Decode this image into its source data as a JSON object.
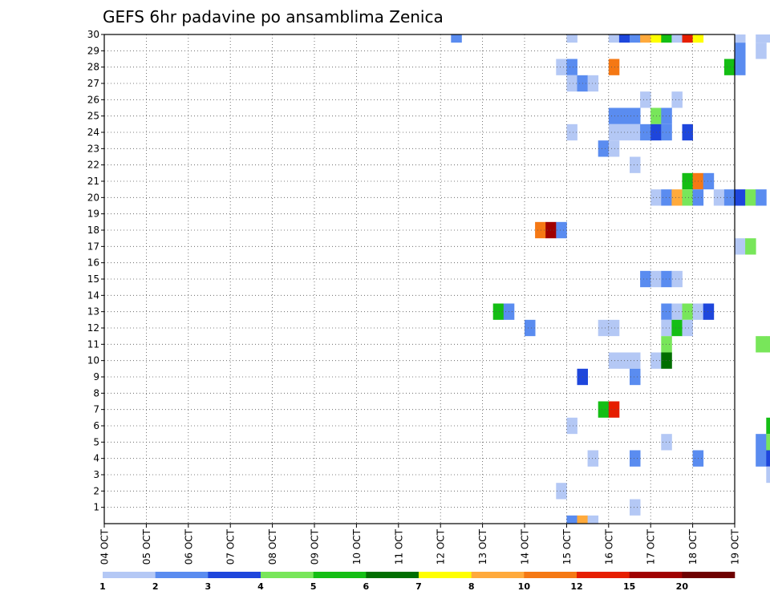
{
  "chart_data": {
    "type": "heatmap",
    "title": "GEFS 6hr padavine po ansamblima Zenica",
    "x_labels": [
      "04 OCT",
      "05 OCT",
      "06 OCT",
      "07 OCT",
      "08 OCT",
      "09 OCT",
      "10 OCT",
      "11 OCT",
      "12 OCT",
      "13 OCT",
      "14 OCT",
      "15 OCT",
      "16 OCT",
      "17 OCT",
      "18 OCT",
      "19 OCT"
    ],
    "y_labels": [
      "1",
      "2",
      "3",
      "4",
      "5",
      "6",
      "7",
      "8",
      "9",
      "10",
      "11",
      "12",
      "13",
      "14",
      "15",
      "16",
      "17",
      "18",
      "19",
      "20",
      "21",
      "22",
      "23",
      "24",
      "25",
      "26",
      "27",
      "28",
      "29",
      "30"
    ],
    "y_range": [
      0,
      30
    ],
    "x_range_steps_per_day": 4,
    "grid": "dotted",
    "legend": "bottom",
    "colorbar": {
      "labels": [
        "1",
        "2",
        "3",
        "4",
        "5",
        "6",
        "7",
        "8",
        "10",
        "12",
        "15",
        "20"
      ],
      "colors": [
        "#b4c8f5",
        "#5a8cf0",
        "#1e46dc",
        "#78e65a",
        "#14be14",
        "#006e00",
        "#ffff00",
        "#ffaa3c",
        "#f57814",
        "#e61e00",
        "#a00000",
        "#6e0000"
      ]
    },
    "cells": [
      {
        "step": 33,
        "member": 30,
        "level": 2
      },
      {
        "step": 44,
        "member": 30,
        "level": 1
      },
      {
        "step": 48,
        "member": 30,
        "level": 1
      },
      {
        "step": 49,
        "member": 30,
        "level": 3
      },
      {
        "step": 50,
        "member": 30,
        "level": 2
      },
      {
        "step": 51,
        "member": 30,
        "level": 8
      },
      {
        "step": 52,
        "member": 30,
        "level": 7
      },
      {
        "step": 53,
        "member": 30,
        "level": 5
      },
      {
        "step": 54,
        "member": 30,
        "level": 1
      },
      {
        "step": 55,
        "member": 30,
        "level": 10
      },
      {
        "step": 56,
        "member": 30,
        "level": 7
      },
      {
        "step": 60,
        "member": 30,
        "level": 1
      },
      {
        "step": 62,
        "member": 30,
        "level": 1
      },
      {
        "step": 63,
        "member": 30,
        "level": 1
      },
      {
        "step": 75,
        "member": 30,
        "level": 3
      },
      {
        "step": 76,
        "member": 30,
        "level": 1
      },
      {
        "step": 60,
        "member": 29,
        "level": 2
      },
      {
        "step": 62,
        "member": 29,
        "level": 1
      },
      {
        "step": 43,
        "member": 28,
        "level": 1
      },
      {
        "step": 44,
        "member": 28,
        "level": 2
      },
      {
        "step": 48,
        "member": 28,
        "level": 9
      },
      {
        "step": 59,
        "member": 28,
        "level": 5
      },
      {
        "step": 60,
        "member": 28,
        "level": 2
      },
      {
        "step": 65,
        "member": 28,
        "level": 2
      },
      {
        "step": 66,
        "member": 28,
        "level": 2
      },
      {
        "step": 44,
        "member": 27,
        "level": 1
      },
      {
        "step": 45,
        "member": 27,
        "level": 2
      },
      {
        "step": 46,
        "member": 27,
        "level": 1
      },
      {
        "step": 76,
        "member": 27,
        "level": 3
      },
      {
        "step": 51,
        "member": 26,
        "level": 1
      },
      {
        "step": 54,
        "member": 26,
        "level": 1
      },
      {
        "step": 71,
        "member": 26,
        "level": 1
      },
      {
        "step": 77,
        "member": 26,
        "level": 2
      },
      {
        "step": 78,
        "member": 26,
        "level": 10
      },
      {
        "step": 79,
        "member": 26,
        "level": 5
      },
      {
        "step": 80,
        "member": 26,
        "level": 5
      },
      {
        "step": 48,
        "member": 25,
        "level": 2
      },
      {
        "step": 49,
        "member": 25,
        "level": 2
      },
      {
        "step": 50,
        "member": 25,
        "level": 2
      },
      {
        "step": 52,
        "member": 25,
        "level": 4
      },
      {
        "step": 53,
        "member": 25,
        "level": 2
      },
      {
        "step": 76,
        "member": 25,
        "level": 1
      },
      {
        "step": 44,
        "member": 24,
        "level": 1
      },
      {
        "step": 48,
        "member": 24,
        "level": 1
      },
      {
        "step": 49,
        "member": 24,
        "level": 1
      },
      {
        "step": 50,
        "member": 24,
        "level": 1
      },
      {
        "step": 51,
        "member": 24,
        "level": 2
      },
      {
        "step": 52,
        "member": 24,
        "level": 3
      },
      {
        "step": 53,
        "member": 24,
        "level": 2
      },
      {
        "step": 55,
        "member": 24,
        "level": 3
      },
      {
        "step": 47,
        "member": 23,
        "level": 2
      },
      {
        "step": 48,
        "member": 23,
        "level": 1
      },
      {
        "step": 50,
        "member": 22,
        "level": 1
      },
      {
        "step": 66,
        "member": 22,
        "level": 6
      },
      {
        "step": 67,
        "member": 22,
        "level": 11
      },
      {
        "step": 68,
        "member": 22,
        "level": 2
      },
      {
        "step": 69,
        "member": 22,
        "level": 5
      },
      {
        "step": 70,
        "member": 22,
        "level": 8
      },
      {
        "step": 75,
        "member": 22,
        "level": 8
      },
      {
        "step": 76,
        "member": 22,
        "level": 7
      },
      {
        "step": 77,
        "member": 22,
        "level": 8
      },
      {
        "step": 78,
        "member": 22,
        "level": 1
      },
      {
        "step": 79,
        "member": 22,
        "level": 1
      },
      {
        "step": 55,
        "member": 21,
        "level": 5
      },
      {
        "step": 56,
        "member": 21,
        "level": 9
      },
      {
        "step": 57,
        "member": 21,
        "level": 2
      },
      {
        "step": 52,
        "member": 20,
        "level": 1
      },
      {
        "step": 53,
        "member": 20,
        "level": 2
      },
      {
        "step": 54,
        "member": 20,
        "level": 8
      },
      {
        "step": 55,
        "member": 20,
        "level": 4
      },
      {
        "step": 56,
        "member": 20,
        "level": 2
      },
      {
        "step": 58,
        "member": 20,
        "level": 1
      },
      {
        "step": 59,
        "member": 20,
        "level": 2
      },
      {
        "step": 60,
        "member": 20,
        "level": 3
      },
      {
        "step": 61,
        "member": 20,
        "level": 4
      },
      {
        "step": 62,
        "member": 20,
        "level": 2
      },
      {
        "step": 73,
        "member": 20,
        "level": 8
      },
      {
        "step": 74,
        "member": 20,
        "level": 5
      },
      {
        "step": 75,
        "member": 20,
        "level": 3
      },
      {
        "step": 78,
        "member": 20,
        "level": 9
      },
      {
        "step": 79,
        "member": 20,
        "level": 6
      },
      {
        "step": 79,
        "member": 19,
        "level": 1
      },
      {
        "step": 80,
        "member": 19,
        "level": 1
      },
      {
        "step": 41,
        "member": 18,
        "level": 9
      },
      {
        "step": 42,
        "member": 18,
        "level": 11
      },
      {
        "step": 43,
        "member": 18,
        "level": 2
      },
      {
        "step": 60,
        "member": 17,
        "level": 1
      },
      {
        "step": 61,
        "member": 17,
        "level": 4
      },
      {
        "step": 80,
        "member": 17,
        "level": 1
      },
      {
        "step": 78,
        "member": 16,
        "level": 2
      },
      {
        "step": 79,
        "member": 16,
        "level": 4
      },
      {
        "step": 80,
        "member": 16,
        "level": 9
      },
      {
        "step": 81,
        "member": 16,
        "level": 2
      },
      {
        "step": 51,
        "member": 15,
        "level": 2
      },
      {
        "step": 52,
        "member": 15,
        "level": 1
      },
      {
        "step": 53,
        "member": 15,
        "level": 2
      },
      {
        "step": 54,
        "member": 15,
        "level": 1
      },
      {
        "step": 64,
        "member": 15,
        "level": 5
      },
      {
        "step": 65,
        "member": 15,
        "level": 11
      },
      {
        "step": 66,
        "member": 15,
        "level": 1
      },
      {
        "step": 73,
        "member": 15,
        "level": 4
      },
      {
        "step": 74,
        "member": 15,
        "level": 9
      },
      {
        "step": 79,
        "member": 14,
        "level": 1
      },
      {
        "step": 37,
        "member": 13,
        "level": 5
      },
      {
        "step": 38,
        "member": 13,
        "level": 2
      },
      {
        "step": 53,
        "member": 13,
        "level": 2
      },
      {
        "step": 54,
        "member": 13,
        "level": 1
      },
      {
        "step": 55,
        "member": 13,
        "level": 4
      },
      {
        "step": 56,
        "member": 13,
        "level": 1
      },
      {
        "step": 57,
        "member": 13,
        "level": 3
      },
      {
        "step": 79,
        "member": 13,
        "level": 1
      },
      {
        "step": 80,
        "member": 13,
        "level": 8
      },
      {
        "step": 81,
        "member": 13,
        "level": 1
      },
      {
        "step": 40,
        "member": 12,
        "level": 2
      },
      {
        "step": 47,
        "member": 12,
        "level": 1
      },
      {
        "step": 48,
        "member": 12,
        "level": 1
      },
      {
        "step": 53,
        "member": 12,
        "level": 1
      },
      {
        "step": 54,
        "member": 12,
        "level": 5
      },
      {
        "step": 55,
        "member": 12,
        "level": 1
      },
      {
        "step": 78,
        "member": 12,
        "level": 10
      },
      {
        "step": 79,
        "member": 12,
        "level": 12
      },
      {
        "step": 80,
        "member": 12,
        "level": 1
      },
      {
        "step": 53,
        "member": 11,
        "level": 4
      },
      {
        "step": 62,
        "member": 11,
        "level": 4
      },
      {
        "step": 63,
        "member": 11,
        "level": 4
      },
      {
        "step": 64,
        "member": 11,
        "level": 12
      },
      {
        "step": 65,
        "member": 11,
        "level": 11
      },
      {
        "step": 66,
        "member": 11,
        "level": 6
      },
      {
        "step": 78,
        "member": 11,
        "level": 9
      },
      {
        "step": 79,
        "member": 11,
        "level": 2
      },
      {
        "step": 80,
        "member": 11,
        "level": 4
      },
      {
        "step": 48,
        "member": 10,
        "level": 1
      },
      {
        "step": 49,
        "member": 10,
        "level": 1
      },
      {
        "step": 50,
        "member": 10,
        "level": 1
      },
      {
        "step": 52,
        "member": 10,
        "level": 1
      },
      {
        "step": 53,
        "member": 10,
        "level": 6
      },
      {
        "step": 74,
        "member": 10,
        "level": 1
      },
      {
        "step": 75,
        "member": 10,
        "level": 4
      },
      {
        "step": 76,
        "member": 10,
        "level": 9
      },
      {
        "step": 45,
        "member": 9,
        "level": 3
      },
      {
        "step": 50,
        "member": 9,
        "level": 2
      },
      {
        "step": 65,
        "member": 8,
        "level": 2
      },
      {
        "step": 66,
        "member": 8,
        "level": 4
      },
      {
        "step": 67,
        "member": 8,
        "level": 7
      },
      {
        "step": 68,
        "member": 8,
        "level": 1
      },
      {
        "step": 47,
        "member": 7,
        "level": 5
      },
      {
        "step": 48,
        "member": 7,
        "level": 10
      },
      {
        "step": 78,
        "member": 7,
        "level": 7
      },
      {
        "step": 79,
        "member": 7,
        "level": 12
      },
      {
        "step": 80,
        "member": 7,
        "level": 11
      },
      {
        "step": 81,
        "member": 7,
        "level": 1
      },
      {
        "step": 44,
        "member": 6,
        "level": 1
      },
      {
        "step": 63,
        "member": 6,
        "level": 5
      },
      {
        "step": 64,
        "member": 6,
        "level": 5
      },
      {
        "step": 74,
        "member": 6,
        "level": 4
      },
      {
        "step": 53,
        "member": 5,
        "level": 1
      },
      {
        "step": 62,
        "member": 5,
        "level": 2
      },
      {
        "step": 63,
        "member": 5,
        "level": 4
      },
      {
        "step": 66,
        "member": 5,
        "level": 1
      },
      {
        "step": 79,
        "member": 5,
        "level": 2
      },
      {
        "step": 80,
        "member": 5,
        "level": 4
      },
      {
        "step": 46,
        "member": 4,
        "level": 1
      },
      {
        "step": 50,
        "member": 4,
        "level": 2
      },
      {
        "step": 56,
        "member": 4,
        "level": 2
      },
      {
        "step": 62,
        "member": 4,
        "level": 2
      },
      {
        "step": 63,
        "member": 4,
        "level": 3
      },
      {
        "step": 64,
        "member": 4,
        "level": 1
      },
      {
        "step": 66,
        "member": 4,
        "level": 2
      },
      {
        "step": 67,
        "member": 4,
        "level": 5
      },
      {
        "step": 68,
        "member": 4,
        "level": 1
      },
      {
        "step": 69,
        "member": 4,
        "level": 2
      },
      {
        "step": 74,
        "member": 4,
        "level": 4
      },
      {
        "step": 75,
        "member": 4,
        "level": 6
      },
      {
        "step": 82,
        "member": 4,
        "level": 3
      },
      {
        "step": 63,
        "member": 3,
        "level": 1
      },
      {
        "step": 65,
        "member": 3,
        "level": 3
      },
      {
        "step": 72,
        "member": 3,
        "level": 1
      },
      {
        "step": 73,
        "member": 3,
        "level": 4
      },
      {
        "step": 78,
        "member": 3,
        "level": 2
      },
      {
        "step": 43,
        "member": 2,
        "level": 1
      },
      {
        "step": 67,
        "member": 2,
        "level": 3
      },
      {
        "step": 76,
        "member": 2,
        "level": 1
      },
      {
        "step": 81,
        "member": 2,
        "level": 1
      },
      {
        "step": 50,
        "member": 1,
        "level": 1
      },
      {
        "step": 69,
        "member": 1,
        "level": 3
      },
      {
        "step": 70,
        "member": 1,
        "level": 1
      },
      {
        "step": 71,
        "member": 1,
        "level": 2
      },
      {
        "step": 44,
        "member": 0,
        "level": 2
      },
      {
        "step": 45,
        "member": 0,
        "level": 8
      },
      {
        "step": 46,
        "member": 0,
        "level": 1
      },
      {
        "step": 74,
        "member": 0,
        "level": 6
      }
    ]
  }
}
